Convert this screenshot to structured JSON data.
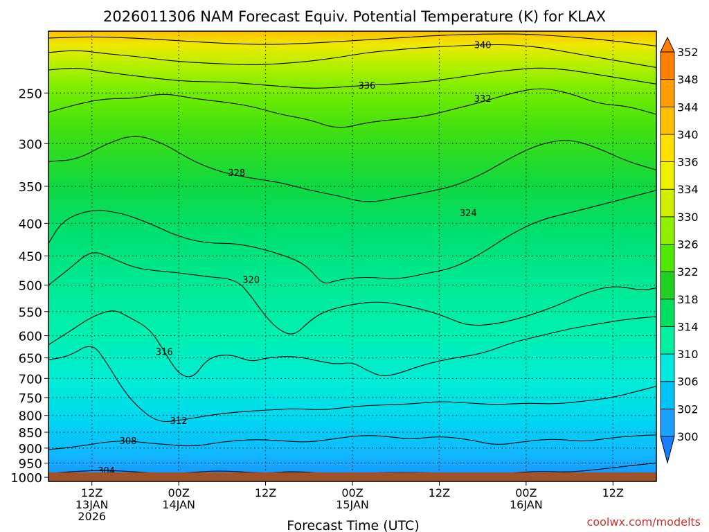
{
  "chart_data": {
    "type": "heatmap",
    "title": "2026011306 NAM Forecast Equiv. Potential Temperature (K) for KLAX",
    "xlabel": "Forecast Time (UTC)",
    "ylabel": "",
    "credit": "coolwx.com/modelts",
    "units": "K",
    "x_hours_range": [
      0,
      84
    ],
    "x_ticks": [
      {
        "hour": 6,
        "labels": [
          "12Z",
          "13JAN",
          "2026"
        ]
      },
      {
        "hour": 18,
        "labels": [
          "00Z",
          "14JAN"
        ]
      },
      {
        "hour": 30,
        "labels": [
          "12Z"
        ]
      },
      {
        "hour": 42,
        "labels": [
          "00Z",
          "15JAN"
        ]
      },
      {
        "hour": 54,
        "labels": [
          "12Z"
        ]
      },
      {
        "hour": 66,
        "labels": [
          "00Z",
          "16JAN"
        ]
      },
      {
        "hour": 78,
        "labels": [
          "12Z"
        ]
      }
    ],
    "y_pressure_range_hPa": [
      1015,
      200
    ],
    "y_ticks": [
      250,
      300,
      350,
      400,
      450,
      500,
      550,
      600,
      650,
      700,
      750,
      800,
      850,
      900,
      950,
      1000
    ],
    "colorbar": {
      "levels": [
        300,
        302,
        306,
        310,
        314,
        318,
        322,
        326,
        330,
        334,
        336,
        340,
        344,
        348,
        352
      ],
      "colors": [
        "#1480ff",
        "#1ca0ff",
        "#00c4f8",
        "#00e8e0",
        "#00f0a0",
        "#00e060",
        "#20d020",
        "#50e800",
        "#90f000",
        "#d0f000",
        "#f0f000",
        "#ffe000",
        "#ffc000",
        "#ffa000",
        "#ff8000"
      ]
    },
    "contours": [
      {
        "label": "304",
        "points": [
          [
            0,
            986
          ],
          [
            4,
            978
          ],
          [
            8,
            975
          ],
          [
            12,
            980
          ],
          [
            16,
            988
          ],
          [
            20,
            982
          ],
          [
            24,
            976
          ],
          [
            30,
            986
          ],
          [
            34,
            978
          ],
          [
            40,
            990
          ],
          [
            44,
            984
          ],
          [
            50,
            982
          ],
          [
            56,
            986
          ],
          [
            60,
            990
          ],
          [
            64,
            984
          ],
          [
            68,
            978
          ],
          [
            72,
            982
          ],
          [
            76,
            972
          ],
          [
            80,
            960
          ],
          [
            84,
            950
          ]
        ],
        "label_at": [
          8,
          975
        ]
      },
      {
        "label": "308",
        "points": [
          [
            0,
            905
          ],
          [
            4,
            895
          ],
          [
            8,
            880
          ],
          [
            11,
            876
          ],
          [
            13,
            882
          ],
          [
            16,
            888
          ],
          [
            20,
            895
          ],
          [
            24,
            880
          ],
          [
            28,
            872
          ],
          [
            32,
            876
          ],
          [
            36,
            882
          ],
          [
            40,
            868
          ],
          [
            44,
            858
          ],
          [
            48,
            866
          ],
          [
            50,
            872
          ],
          [
            54,
            862
          ],
          [
            58,
            872
          ],
          [
            62,
            892
          ],
          [
            66,
            878
          ],
          [
            70,
            870
          ],
          [
            74,
            880
          ],
          [
            78,
            866
          ],
          [
            82,
            860
          ],
          [
            84,
            858
          ]
        ],
        "label_at": [
          11,
          876
        ]
      },
      {
        "label": "312",
        "points": [
          [
            0,
            655
          ],
          [
            3,
            645
          ],
          [
            6,
            615
          ],
          [
            8,
            660
          ],
          [
            10,
            720
          ],
          [
            12,
            770
          ],
          [
            15,
            820
          ],
          [
            18,
            815
          ],
          [
            22,
            800
          ],
          [
            26,
            790
          ],
          [
            30,
            785
          ],
          [
            34,
            780
          ],
          [
            38,
            785
          ],
          [
            42,
            775
          ],
          [
            46,
            770
          ],
          [
            50,
            768
          ],
          [
            54,
            760
          ],
          [
            58,
            765
          ],
          [
            62,
            770
          ],
          [
            66,
            765
          ],
          [
            70,
            768
          ],
          [
            74,
            760
          ],
          [
            78,
            750
          ],
          [
            82,
            730
          ],
          [
            84,
            720
          ]
        ],
        "label_at": [
          18,
          815
        ]
      },
      {
        "label": "316",
        "points": [
          [
            0,
            620
          ],
          [
            3,
            590
          ],
          [
            6,
            560
          ],
          [
            9,
            545
          ],
          [
            11,
            560
          ],
          [
            14,
            585
          ],
          [
            16,
            635
          ],
          [
            18,
            690
          ],
          [
            20,
            700
          ],
          [
            22,
            650
          ],
          [
            25,
            640
          ],
          [
            28,
            660
          ],
          [
            30,
            650
          ],
          [
            34,
            645
          ],
          [
            38,
            660
          ],
          [
            40,
            665
          ],
          [
            42,
            660
          ],
          [
            44,
            680
          ],
          [
            46,
            695
          ],
          [
            48,
            690
          ],
          [
            52,
            665
          ],
          [
            56,
            650
          ],
          [
            60,
            640
          ],
          [
            64,
            615
          ],
          [
            68,
            600
          ],
          [
            72,
            585
          ],
          [
            76,
            575
          ],
          [
            80,
            565
          ],
          [
            84,
            560
          ]
        ],
        "label_at": [
          16,
          635
        ]
      },
      {
        "label": "320",
        "points": [
          [
            0,
            500
          ],
          [
            3,
            470
          ],
          [
            6,
            440
          ],
          [
            9,
            455
          ],
          [
            12,
            470
          ],
          [
            15,
            475
          ],
          [
            18,
            478
          ],
          [
            22,
            485
          ],
          [
            26,
            490
          ],
          [
            28,
            520
          ],
          [
            30,
            560
          ],
          [
            32,
            590
          ],
          [
            34,
            600
          ],
          [
            36,
            570
          ],
          [
            38,
            550
          ],
          [
            42,
            535
          ],
          [
            46,
            530
          ],
          [
            50,
            540
          ],
          [
            54,
            555
          ],
          [
            58,
            580
          ],
          [
            62,
            575
          ],
          [
            66,
            560
          ],
          [
            70,
            540
          ],
          [
            74,
            515
          ],
          [
            78,
            500
          ],
          [
            82,
            510
          ],
          [
            84,
            505
          ]
        ],
        "label_at": [
          28,
          490
        ]
      },
      {
        "label": "324",
        "points": [
          [
            0,
            430
          ],
          [
            2,
            395
          ],
          [
            6,
            380
          ],
          [
            10,
            385
          ],
          [
            14,
            400
          ],
          [
            18,
            420
          ],
          [
            22,
            430
          ],
          [
            26,
            430
          ],
          [
            30,
            440
          ],
          [
            34,
            455
          ],
          [
            36,
            470
          ],
          [
            38,
            500
          ],
          [
            40,
            490
          ],
          [
            44,
            485
          ],
          [
            48,
            490
          ],
          [
            52,
            480
          ],
          [
            56,
            470
          ],
          [
            60,
            445
          ],
          [
            64,
            415
          ],
          [
            68,
            395
          ],
          [
            72,
            385
          ],
          [
            76,
            375
          ],
          [
            80,
            365
          ],
          [
            84,
            355
          ]
        ],
        "label_at": [
          58,
          385
        ]
      },
      {
        "label": "328",
        "points": [
          [
            0,
            320
          ],
          [
            4,
            318
          ],
          [
            8,
            300
          ],
          [
            12,
            290
          ],
          [
            16,
            300
          ],
          [
            20,
            320
          ],
          [
            24,
            333
          ],
          [
            28,
            340
          ],
          [
            32,
            345
          ],
          [
            36,
            355
          ],
          [
            40,
            362
          ],
          [
            44,
            372
          ],
          [
            48,
            365
          ],
          [
            52,
            358
          ],
          [
            56,
            350
          ],
          [
            60,
            335
          ],
          [
            64,
            315
          ],
          [
            68,
            300
          ],
          [
            72,
            295
          ],
          [
            76,
            305
          ],
          [
            80,
            320
          ],
          [
            84,
            330
          ]
        ],
        "label_at": [
          26,
          333
        ]
      },
      {
        "label": "332",
        "points": [
          [
            0,
            268
          ],
          [
            4,
            260
          ],
          [
            8,
            255
          ],
          [
            12,
            255
          ],
          [
            16,
            250
          ],
          [
            20,
            255
          ],
          [
            24,
            258
          ],
          [
            28,
            262
          ],
          [
            32,
            270
          ],
          [
            36,
            275
          ],
          [
            40,
            285
          ],
          [
            44,
            278
          ],
          [
            48,
            275
          ],
          [
            52,
            272
          ],
          [
            56,
            265
          ],
          [
            60,
            258
          ],
          [
            64,
            250
          ],
          [
            68,
            245
          ],
          [
            72,
            250
          ],
          [
            76,
            260
          ],
          [
            80,
            262
          ],
          [
            84,
            270
          ]
        ],
        "label_at": [
          60,
          255
        ]
      },
      {
        "label": "336",
        "points": [
          [
            0,
            230
          ],
          [
            4,
            228
          ],
          [
            8,
            232
          ],
          [
            12,
            235
          ],
          [
            16,
            238
          ],
          [
            20,
            240
          ],
          [
            24,
            240
          ],
          [
            28,
            242
          ],
          [
            32,
            244
          ],
          [
            36,
            246
          ],
          [
            40,
            245
          ],
          [
            44,
            243
          ],
          [
            48,
            242
          ],
          [
            52,
            240
          ],
          [
            56,
            237
          ],
          [
            60,
            233
          ],
          [
            64,
            230
          ],
          [
            68,
            228
          ],
          [
            72,
            230
          ],
          [
            76,
            234
          ],
          [
            80,
            238
          ],
          [
            84,
            242
          ]
        ],
        "label_at": [
          44,
          243
        ]
      },
      {
        "label": "340",
        "points": [
          [
            0,
            216
          ],
          [
            4,
            214
          ],
          [
            8,
            217
          ],
          [
            12,
            219
          ],
          [
            16,
            222
          ],
          [
            20,
            224
          ],
          [
            24,
            225
          ],
          [
            28,
            226
          ],
          [
            32,
            225
          ],
          [
            36,
            223
          ],
          [
            40,
            220
          ],
          [
            44,
            216
          ],
          [
            48,
            214
          ],
          [
            52,
            212
          ],
          [
            56,
            211
          ],
          [
            60,
            210
          ],
          [
            64,
            210
          ],
          [
            68,
            212
          ],
          [
            72,
            216
          ],
          [
            76,
            220
          ],
          [
            80,
            224
          ],
          [
            84,
            228
          ]
        ],
        "label_at": [
          60,
          210
        ]
      },
      {
        "label": "",
        "points": [
          [
            0,
            205
          ],
          [
            6,
            204
          ],
          [
            12,
            205
          ],
          [
            18,
            207
          ],
          [
            24,
            209
          ],
          [
            30,
            210
          ],
          [
            36,
            209
          ],
          [
            42,
            207
          ],
          [
            48,
            205
          ],
          [
            54,
            203
          ],
          [
            60,
            202
          ],
          [
            66,
            202
          ],
          [
            72,
            204
          ],
          [
            78,
            207
          ],
          [
            84,
            211
          ]
        ],
        "label_at": null
      }
    ]
  }
}
